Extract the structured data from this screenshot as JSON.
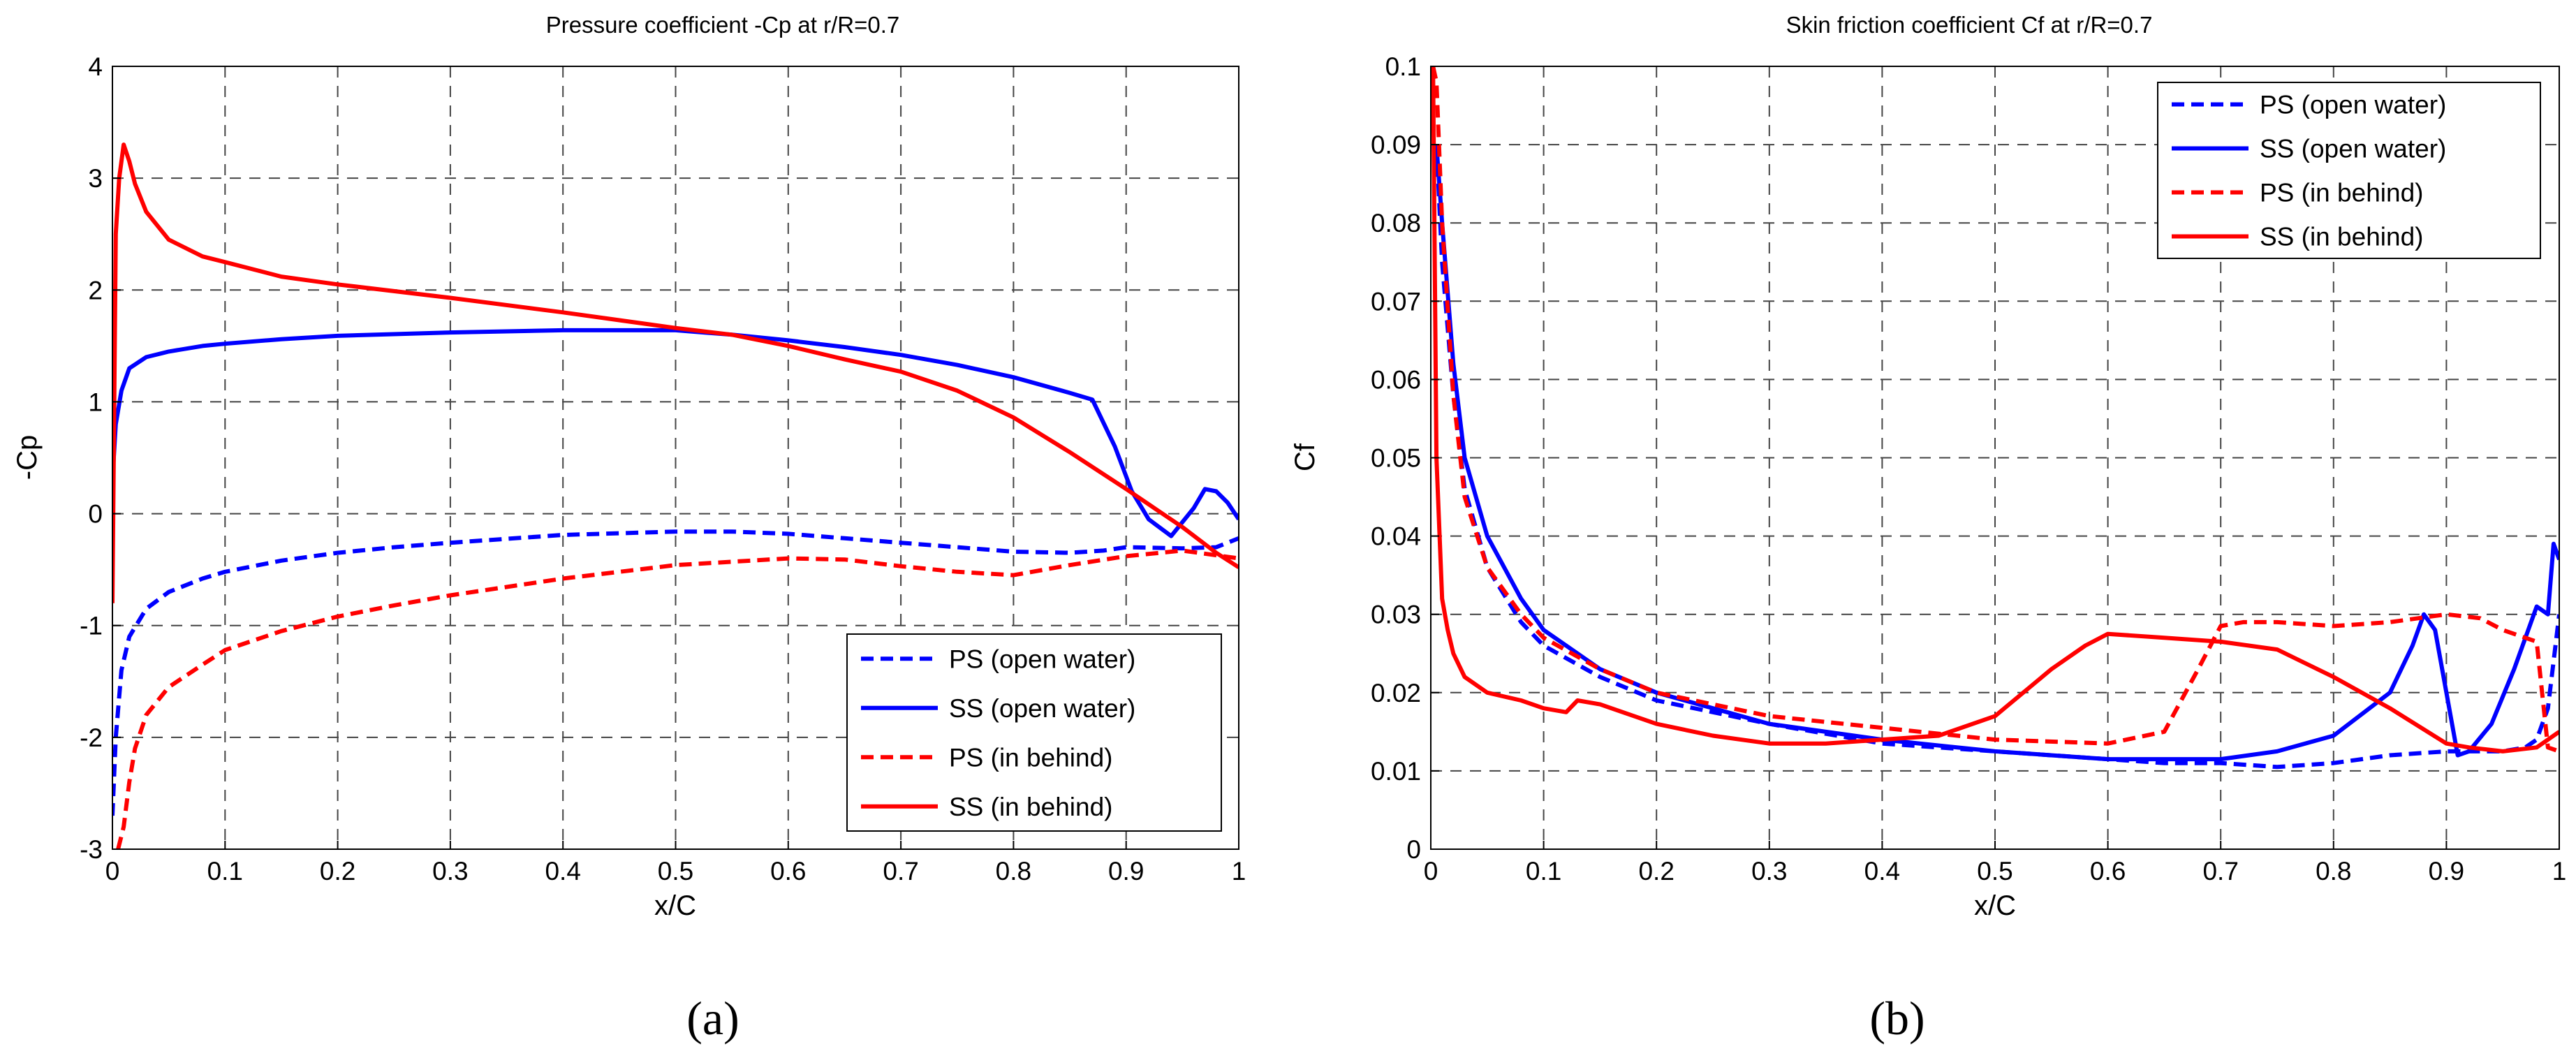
{
  "chart_data": [
    {
      "type": "line",
      "title": "Pressure coefficient -Cp at r/R=0.7",
      "xlabel": "x/C",
      "ylabel": "-Cp",
      "xlim": [
        0,
        1
      ],
      "ylim": [
        -3,
        4
      ],
      "xticks": [
        0,
        0.1,
        0.2,
        0.3,
        0.4,
        0.5,
        0.6,
        0.7,
        0.8,
        0.9,
        1
      ],
      "xtick_labels": [
        "0",
        "0.1",
        "0.2",
        "0.3",
        "0.4",
        "0.5",
        "0.6",
        "0.7",
        "0.8",
        "0.9",
        "1"
      ],
      "yticks": [
        -3,
        -2,
        -1,
        0,
        1,
        2,
        3,
        4
      ],
      "ytick_labels": [
        "-3",
        "-2",
        "-1",
        "0",
        "1",
        "2",
        "3",
        "4"
      ],
      "grid": true,
      "legend_position": "bottom-right",
      "caption": "(a)",
      "series": [
        {
          "name": "PS (open water)",
          "color": "#0000ff",
          "dash": "dashed",
          "x": [
            0,
            0.003,
            0.008,
            0.015,
            0.03,
            0.05,
            0.08,
            0.1,
            0.15,
            0.2,
            0.25,
            0.3,
            0.4,
            0.5,
            0.55,
            0.6,
            0.65,
            0.7,
            0.75,
            0.8,
            0.85,
            0.88,
            0.9,
            0.95,
            0.98,
            1.0
          ],
          "y": [
            -2.7,
            -2.0,
            -1.4,
            -1.1,
            -0.85,
            -0.7,
            -0.58,
            -0.52,
            -0.42,
            -0.35,
            -0.3,
            -0.26,
            -0.19,
            -0.16,
            -0.16,
            -0.18,
            -0.22,
            -0.26,
            -0.3,
            -0.34,
            -0.35,
            -0.33,
            -0.3,
            -0.31,
            -0.3,
            -0.22
          ]
        },
        {
          "name": "SS (open water)",
          "color": "#0000ff",
          "dash": "solid",
          "x": [
            0,
            0.003,
            0.008,
            0.015,
            0.03,
            0.05,
            0.08,
            0.1,
            0.15,
            0.2,
            0.3,
            0.4,
            0.5,
            0.55,
            0.6,
            0.65,
            0.7,
            0.75,
            0.8,
            0.85,
            0.87,
            0.89,
            0.905,
            0.92,
            0.94,
            0.96,
            0.97,
            0.98,
            0.99,
            1.0
          ],
          "y": [
            0.3,
            0.8,
            1.1,
            1.3,
            1.4,
            1.45,
            1.5,
            1.52,
            1.56,
            1.59,
            1.62,
            1.64,
            1.64,
            1.6,
            1.55,
            1.49,
            1.42,
            1.33,
            1.22,
            1.08,
            1.02,
            0.6,
            0.2,
            -0.05,
            -0.2,
            0.05,
            0.22,
            0.2,
            0.1,
            -0.05
          ]
        },
        {
          "name": "PS (in behind)",
          "color": "#ff0000",
          "dash": "dashed",
          "x": [
            0.005,
            0.01,
            0.015,
            0.02,
            0.03,
            0.05,
            0.08,
            0.1,
            0.15,
            0.2,
            0.25,
            0.3,
            0.4,
            0.5,
            0.6,
            0.65,
            0.7,
            0.75,
            0.8,
            0.85,
            0.9,
            0.95,
            1.0
          ],
          "y": [
            -3.0,
            -2.8,
            -2.4,
            -2.1,
            -1.8,
            -1.55,
            -1.35,
            -1.22,
            -1.05,
            -0.92,
            -0.82,
            -0.73,
            -0.58,
            -0.46,
            -0.4,
            -0.41,
            -0.47,
            -0.52,
            -0.55,
            -0.46,
            -0.38,
            -0.33,
            -0.4
          ]
        },
        {
          "name": "SS (in behind)",
          "color": "#ff0000",
          "dash": "solid",
          "x": [
            0,
            0.003,
            0.006,
            0.01,
            0.015,
            0.02,
            0.03,
            0.05,
            0.08,
            0.1,
            0.15,
            0.2,
            0.3,
            0.4,
            0.5,
            0.55,
            0.6,
            0.65,
            0.7,
            0.75,
            0.8,
            0.85,
            0.9,
            0.95,
            0.98,
            1.0
          ],
          "y": [
            -0.8,
            2.5,
            3.0,
            3.3,
            3.15,
            2.95,
            2.7,
            2.45,
            2.3,
            2.25,
            2.12,
            2.05,
            1.93,
            1.8,
            1.66,
            1.6,
            1.5,
            1.38,
            1.27,
            1.1,
            0.86,
            0.55,
            0.22,
            -0.12,
            -0.35,
            -0.48
          ]
        }
      ]
    },
    {
      "type": "line",
      "title": "Skin friction coefficient Cf at r/R=0.7",
      "xlabel": "x/C",
      "ylabel": "Cf",
      "xlim": [
        0,
        1
      ],
      "ylim": [
        0,
        0.1
      ],
      "xticks": [
        0,
        0.1,
        0.2,
        0.3,
        0.4,
        0.5,
        0.6,
        0.7,
        0.8,
        0.9,
        1
      ],
      "xtick_labels": [
        "0",
        "0.1",
        "0.2",
        "0.3",
        "0.4",
        "0.5",
        "0.6",
        "0.7",
        "0.8",
        "0.9",
        "1"
      ],
      "yticks": [
        0,
        0.01,
        0.02,
        0.03,
        0.04,
        0.05,
        0.06,
        0.07,
        0.08,
        0.09,
        0.1
      ],
      "ytick_labels": [
        "0",
        "0.01",
        "0.02",
        "0.03",
        "0.04",
        "0.05",
        "0.06",
        "0.07",
        "0.08",
        "0.09",
        "0.1"
      ],
      "grid": true,
      "legend_position": "top-right",
      "caption": "(b)",
      "series": [
        {
          "name": "PS (open water)",
          "color": "#0000ff",
          "dash": "dashed",
          "x": [
            0.005,
            0.01,
            0.02,
            0.03,
            0.05,
            0.08,
            0.1,
            0.15,
            0.2,
            0.3,
            0.4,
            0.5,
            0.6,
            0.65,
            0.7,
            0.75,
            0.8,
            0.85,
            0.9,
            0.95,
            0.97,
            0.98,
            0.99,
            1.0
          ],
          "y": [
            0.09,
            0.075,
            0.058,
            0.046,
            0.036,
            0.029,
            0.026,
            0.022,
            0.019,
            0.016,
            0.0135,
            0.0125,
            0.0115,
            0.011,
            0.011,
            0.0105,
            0.011,
            0.012,
            0.0125,
            0.0125,
            0.013,
            0.014,
            0.018,
            0.03
          ]
        },
        {
          "name": "SS (open water)",
          "color": "#0000ff",
          "dash": "solid",
          "x": [
            0.005,
            0.01,
            0.02,
            0.03,
            0.05,
            0.08,
            0.1,
            0.15,
            0.2,
            0.3,
            0.4,
            0.5,
            0.6,
            0.7,
            0.75,
            0.8,
            0.85,
            0.87,
            0.88,
            0.89,
            0.9,
            0.91,
            0.92,
            0.94,
            0.96,
            0.98,
            0.99,
            0.995,
            1.0
          ],
          "y": [
            0.09,
            0.08,
            0.062,
            0.05,
            0.04,
            0.032,
            0.028,
            0.023,
            0.02,
            0.016,
            0.014,
            0.0125,
            0.0115,
            0.0115,
            0.0125,
            0.0145,
            0.02,
            0.026,
            0.03,
            0.028,
            0.02,
            0.012,
            0.0125,
            0.016,
            0.023,
            0.031,
            0.03,
            0.039,
            0.037
          ]
        },
        {
          "name": "PS (in behind)",
          "color": "#ff0000",
          "dash": "dashed",
          "x": [
            0.002,
            0.005,
            0.01,
            0.02,
            0.03,
            0.05,
            0.08,
            0.1,
            0.15,
            0.2,
            0.3,
            0.4,
            0.5,
            0.6,
            0.65,
            0.68,
            0.7,
            0.72,
            0.75,
            0.8,
            0.85,
            0.9,
            0.93,
            0.95,
            0.97,
            0.98,
            0.99,
            1.0
          ],
          "y": [
            0.1,
            0.098,
            0.08,
            0.058,
            0.045,
            0.036,
            0.03,
            0.027,
            0.023,
            0.02,
            0.017,
            0.0155,
            0.014,
            0.0135,
            0.015,
            0.023,
            0.0285,
            0.029,
            0.029,
            0.0285,
            0.029,
            0.03,
            0.0295,
            0.028,
            0.027,
            0.0265,
            0.013,
            0.0125
          ]
        },
        {
          "name": "SS (in behind)",
          "color": "#ff0000",
          "dash": "solid",
          "x": [
            0.002,
            0.005,
            0.01,
            0.015,
            0.02,
            0.03,
            0.05,
            0.08,
            0.1,
            0.12,
            0.13,
            0.15,
            0.2,
            0.25,
            0.3,
            0.35,
            0.4,
            0.45,
            0.5,
            0.55,
            0.58,
            0.6,
            0.65,
            0.7,
            0.75,
            0.8,
            0.85,
            0.9,
            0.92,
            0.95,
            0.98,
            1.0
          ],
          "y": [
            0.1,
            0.05,
            0.032,
            0.028,
            0.025,
            0.022,
            0.02,
            0.019,
            0.018,
            0.0175,
            0.019,
            0.0185,
            0.016,
            0.0145,
            0.0135,
            0.0135,
            0.014,
            0.0145,
            0.017,
            0.023,
            0.026,
            0.0275,
            0.027,
            0.0265,
            0.0255,
            0.022,
            0.018,
            0.0135,
            0.013,
            0.0125,
            0.013,
            0.015
          ]
        }
      ]
    }
  ]
}
